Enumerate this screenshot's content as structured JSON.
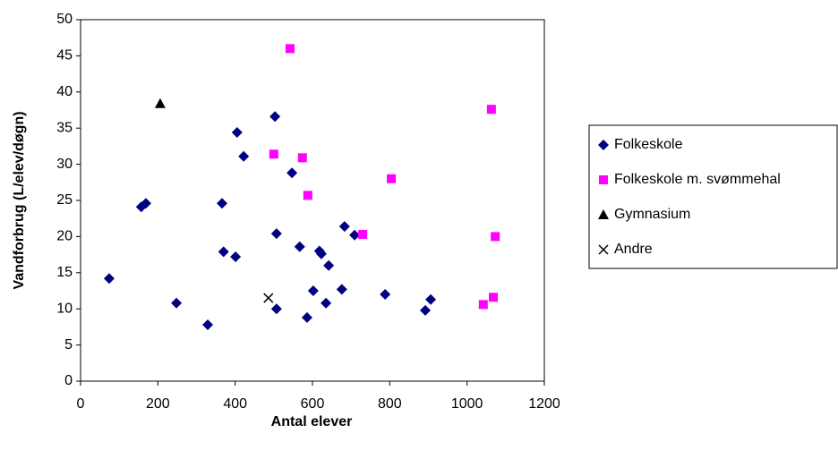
{
  "chart_data": {
    "type": "scatter",
    "x_label": "Antal elever",
    "y_label": "Vandforbrug (L/elev/døgn)",
    "xlim": [
      0,
      1200
    ],
    "xticks": [
      0,
      200,
      400,
      600,
      800,
      1000,
      1200
    ],
    "ylim": [
      0,
      50
    ],
    "yticks": [
      0,
      5,
      10,
      15,
      20,
      25,
      30,
      35,
      40,
      45,
      50
    ],
    "grid": false,
    "legend": "right",
    "series": [
      {
        "name": "Folkeskole",
        "color": "#000080",
        "marker": "diamond",
        "x": [
          74,
          157,
          169,
          248,
          329,
          366,
          370,
          401,
          405,
          422,
          503,
          507,
          507,
          547,
          567,
          586,
          602,
          618,
          623,
          635,
          642,
          676,
          683,
          709,
          788,
          892,
          906
        ],
        "values": [
          14.2,
          24.1,
          24.6,
          10.8,
          7.8,
          24.6,
          17.9,
          17.2,
          34.4,
          31.1,
          36.6,
          20.4,
          10.0,
          28.8,
          18.6,
          8.8,
          12.5,
          18.0,
          17.6,
          10.8,
          16.0,
          12.7,
          21.4,
          20.2,
          12.0,
          9.8,
          11.3
        ]
      },
      {
        "name": "Folkeskole m. svømmehal",
        "color": "#ff00ff",
        "marker": "square",
        "x": [
          542,
          500,
          574,
          588,
          730,
          804,
          1063,
          1073,
          1068,
          1042
        ],
        "values": [
          46.0,
          31.4,
          30.9,
          25.7,
          20.3,
          28.0,
          37.6,
          20.0,
          11.6,
          10.6
        ]
      },
      {
        "name": "Gymnasium",
        "color": "#000000",
        "marker": "triangle",
        "x": [
          206
        ],
        "values": [
          38.4
        ]
      },
      {
        "name": "Andre",
        "color": "#000000",
        "marker": "cross",
        "x": [
          486
        ],
        "values": [
          11.5
        ]
      }
    ]
  }
}
